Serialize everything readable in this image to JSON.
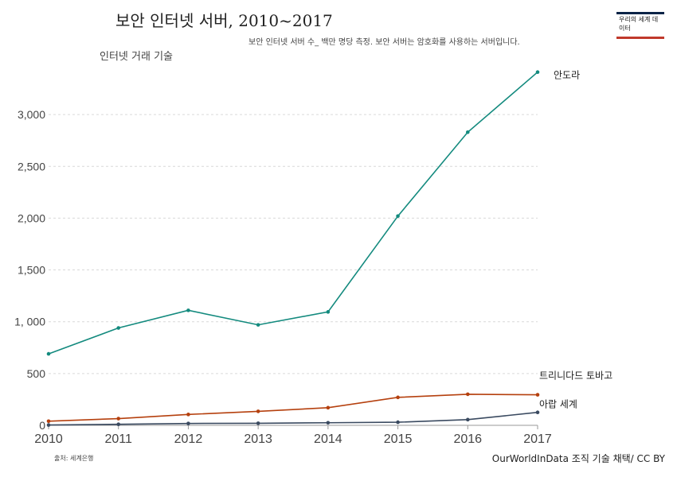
{
  "header": {
    "title": "보안 인터넷 서버, 2010~2017",
    "subtitle": "보안 인터넷 서버 수_ 백만 명당 측정. 보안 서버는 암호화를 사용하는 서버입니다."
  },
  "logo": {
    "text": "우리의 세계 데이터"
  },
  "footer": {
    "source": "출처: 세계은행",
    "credit": "OurWorldInData 조직 기술 채택/ CC BY"
  },
  "chart_data": {
    "type": "line",
    "ylabel": "인터넷 거래 기술",
    "xlabel": "",
    "x": [
      2010,
      2011,
      2012,
      2013,
      2014,
      2015,
      2016,
      2017
    ],
    "ylim": [
      0,
      3400
    ],
    "yticks": [
      0,
      500,
      1000,
      1500,
      2000,
      2500,
      3000
    ],
    "ytick_labels": [
      "0",
      "500",
      "1, 000",
      "1,500",
      "2,000",
      "2,500",
      "3,000"
    ],
    "grid": true,
    "series": [
      {
        "name": "안도라",
        "color": "#138a7e",
        "values": [
          690,
          940,
          1110,
          970,
          1095,
          2020,
          2830,
          3410
        ]
      },
      {
        "name": "트리니다드 토바고",
        "color": "#b5400e",
        "values": [
          40,
          65,
          105,
          135,
          170,
          270,
          300,
          295
        ]
      },
      {
        "name": "아랍 세계",
        "color": "#3a4a60",
        "values": [
          3,
          10,
          18,
          20,
          25,
          30,
          55,
          125
        ]
      }
    ]
  }
}
